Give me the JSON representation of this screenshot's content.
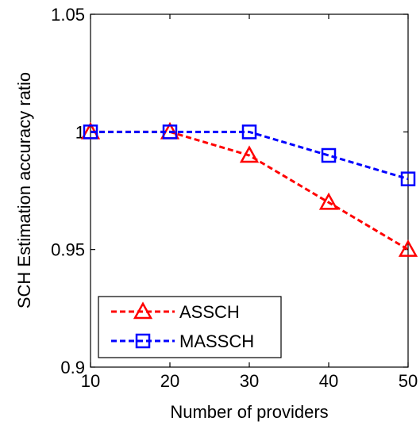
{
  "chart_data": {
    "type": "line",
    "xlabel": "Number of providers",
    "ylabel": "SCH Estimation accuracy ratio",
    "x": [
      10,
      20,
      30,
      40,
      50
    ],
    "xlim": [
      10,
      50
    ],
    "ylim": [
      0.9,
      1.05
    ],
    "xticks": [
      10,
      20,
      30,
      40,
      50
    ],
    "xtick_labels": [
      "10",
      "20",
      "30",
      "40",
      "50"
    ],
    "yticks": [
      0.9,
      0.95,
      1.0,
      1.05
    ],
    "ytick_labels": [
      "0.9",
      "0.95",
      "1",
      "1.05"
    ],
    "grid": false,
    "legend_position": "bottom-left",
    "series": [
      {
        "name": "ASSCH",
        "values": [
          1.0,
          1.0,
          0.99,
          0.97,
          0.95
        ],
        "color": "#ff0000",
        "marker": "triangle",
        "line_style": "dashed"
      },
      {
        "name": "MASSCH",
        "values": [
          1.0,
          1.0,
          1.0,
          0.99,
          0.98
        ],
        "color": "#0000ff",
        "marker": "square",
        "line_style": "dashed"
      }
    ]
  }
}
